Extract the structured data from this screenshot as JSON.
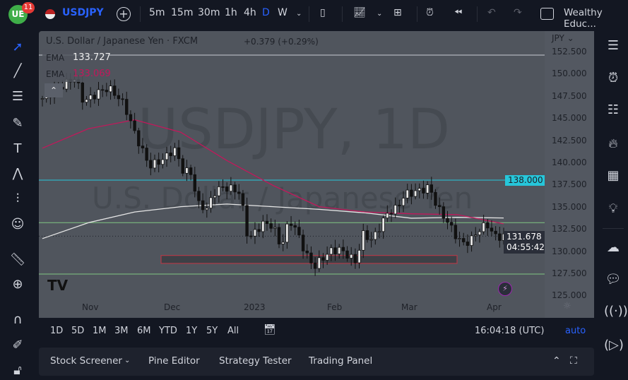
{
  "topbar": {
    "logo_text": "UE",
    "notification_count": "11",
    "symbol": "USDJPY",
    "intervals": [
      "5m",
      "15m",
      "30m",
      "1h",
      "4h",
      "D",
      "W"
    ],
    "active_interval": "D",
    "account": "Wealthy Educ..."
  },
  "legend": {
    "title": "U.S. Dollar / Japanese Yen · FXCM",
    "change": "+0.379 (+0.29%)",
    "ema1_label": "EMA",
    "ema1_value": "133.727",
    "ema2_label": "EMA",
    "ema2_value": "133.069"
  },
  "watermark": {
    "line1": "USDJPY, 1D",
    "line2": "U.S. Dollar / Japanese Yen"
  },
  "price_axis": {
    "currency": "JPY",
    "ticks": [
      "152.500",
      "150.000",
      "147.500",
      "145.000",
      "142.500",
      "140.000",
      "137.500",
      "135.000",
      "132.500",
      "130.000",
      "127.500",
      "125.000"
    ],
    "level_label": "138.000",
    "last_price": "131.678",
    "countdown": "04:55:42"
  },
  "time_axis": {
    "labels": [
      "Nov",
      "Dec",
      "2023",
      "Feb",
      "Mar",
      "Apr"
    ]
  },
  "timeframes": {
    "ranges": [
      "1D",
      "5D",
      "1M",
      "3M",
      "6M",
      "YTD",
      "1Y",
      "5Y",
      "All"
    ],
    "clock": "16:04:18 (UTC)",
    "auto": "auto"
  },
  "bottom_panel": {
    "tabs": [
      "Stock Screener",
      "Pine Editor",
      "Strategy Tester",
      "Trading Panel"
    ]
  },
  "colors": {
    "accent": "#2962ff",
    "ema_white": "#e6e6e6",
    "ema_pink": "#c2185b",
    "level_cyan": "#26c6da",
    "level_green": "#81c784",
    "box_border": "#b03a48"
  },
  "chart_data": {
    "type": "candlestick",
    "ylim": [
      124.5,
      153
    ],
    "closes": [
      147.2,
      147.8,
      148.4,
      149.0,
      149.6,
      146.8,
      147.4,
      148.0,
      148.4,
      147.6,
      146.4,
      143.8,
      141.6,
      139.6,
      140.0,
      140.6,
      141.6,
      139.2,
      138.8,
      135.2,
      134.8,
      136.8,
      137.2,
      137.0,
      136.6,
      131.2,
      132.4,
      133.2,
      132.8,
      130.4,
      133.6,
      132.0,
      129.6,
      128.2,
      129.2,
      130.0,
      130.2,
      129.6,
      128.8,
      132.0,
      131.2,
      132.8,
      134.4,
      134.8,
      136.4,
      136.6,
      136.9,
      137.2,
      134.8,
      133.6,
      132.0,
      130.8,
      131.2,
      132.4,
      133.0,
      131.6,
      131.678
    ],
    "ema_white": [
      131.4,
      133.2,
      134.4,
      135.0,
      135.3,
      135.0,
      134.7,
      134.3,
      133.7,
      133.8,
      133.727
    ],
    "ema_pink": [
      141.6,
      143.8,
      144.8,
      143.4,
      140.2,
      137.4,
      135.0,
      134.4,
      134.2,
      134.1,
      133.069
    ],
    "levels": [
      152.1,
      138.0,
      133.2,
      127.4
    ],
    "zone": [
      128.6,
      129.5
    ]
  }
}
